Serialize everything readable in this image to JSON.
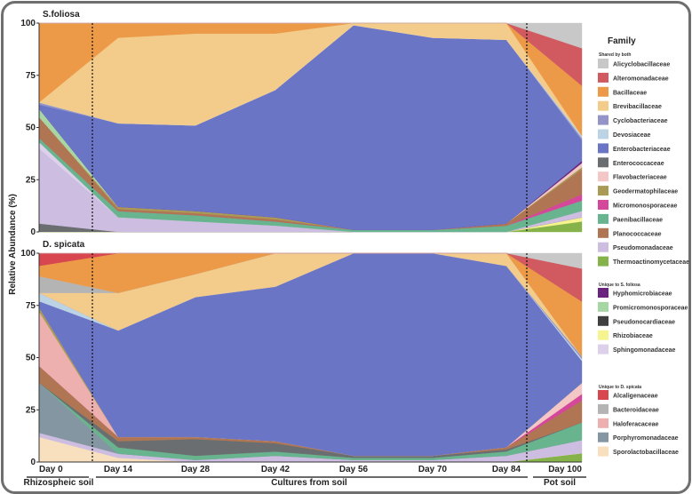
{
  "chart_data": {
    "type": "area",
    "ylabel": "Relative Abundance (%)",
    "yticks": [
      0,
      25,
      50,
      75,
      100
    ],
    "x": [
      "Day 0",
      "Day 14",
      "Day 28",
      "Day 42",
      "Day 56",
      "Day 70",
      "Day 84",
      "Day 100"
    ],
    "groups": [
      {
        "label": "Rhizospheic soil",
        "from": "Day 0",
        "to": "Day 0"
      },
      {
        "label": "Cultures from soil",
        "from": "Day 14",
        "to": "Day 84"
      },
      {
        "label": "Pot soil",
        "from": "Day 100",
        "to": "Day 100"
      }
    ],
    "panels": [
      {
        "title": "S.foliosa",
        "series": [
          {
            "name": "Thermoactinomycetaceae",
            "values": [
              0,
              0,
              0,
              0,
              0,
              0,
              0,
              5
            ]
          },
          {
            "name": "Rhizobiaceae",
            "values": [
              0,
              0,
              0,
              0,
              0,
              0,
              0,
              2
            ]
          },
          {
            "name": "Enterococcaceae",
            "values": [
              4,
              0,
              0,
              0,
              0,
              0,
              0,
              0
            ]
          },
          {
            "name": "Pseudomonadaceae",
            "values": [
              36,
              7,
              5,
              3,
              0,
              0,
              0,
              3
            ]
          },
          {
            "name": "Sphingomonadaceae",
            "values": [
              3,
              0,
              0,
              0,
              0,
              0,
              0,
              0
            ]
          },
          {
            "name": "Paenibacillaceae",
            "values": [
              2,
              3,
              3,
              2,
              1,
              1,
              3,
              5
            ]
          },
          {
            "name": "Micromonosporaceae",
            "values": [
              0,
              0,
              0,
              0,
              0,
              0,
              0,
              3
            ]
          },
          {
            "name": "Planococcaceae",
            "values": [
              10,
              1,
              1,
              1,
              0,
              0,
              1,
              12
            ]
          },
          {
            "name": "Geodermatophilaceae",
            "values": [
              0,
              1,
              1,
              1,
              0,
              0,
              0,
              1
            ]
          },
          {
            "name": "Flavobacteriaceae",
            "values": [
              0,
              0,
              0,
              0,
              0,
              0,
              0,
              2
            ]
          },
          {
            "name": "Promicromonosporaceae",
            "values": [
              4,
              0,
              0,
              0,
              0,
              0,
              0,
              0
            ]
          },
          {
            "name": "Hyphomicrobiaceae",
            "values": [
              0,
              0,
              0,
              0,
              0,
              0,
              0,
              1
            ]
          },
          {
            "name": "Enterobacteriaceae",
            "values": [
              2,
              40,
              41,
              61,
              98,
              92,
              88,
              10
            ]
          },
          {
            "name": "Cyclobacteriaceae",
            "values": [
              1,
              0,
              0,
              0,
              0,
              0,
              0,
              1
            ]
          },
          {
            "name": "Devosiaceae",
            "values": [
              0,
              0,
              0,
              0,
              0,
              0,
              0,
              1
            ]
          },
          {
            "name": "Brevibacillaceae",
            "values": [
              0,
              41,
              44,
              27,
              1,
              7,
              8,
              0
            ]
          },
          {
            "name": "Bacillaceae",
            "values": [
              38,
              7,
              5,
              5,
              0,
              0,
              0,
              24
            ]
          },
          {
            "name": "Alteromonadaceae",
            "values": [
              0,
              0,
              0,
              0,
              0,
              0,
              0,
              18
            ]
          },
          {
            "name": "Alicyclobacillaceae",
            "values": [
              0,
              0,
              0,
              0,
              0,
              0,
              0,
              12
            ]
          }
        ]
      },
      {
        "title": "D. spicata",
        "series": [
          {
            "name": "Thermoactinomycetaceae",
            "values": [
              0,
              0,
              0,
              0,
              0,
              0,
              0,
              4
            ]
          },
          {
            "name": "Sporolactobacillaceae",
            "values": [
              12,
              2,
              0,
              0,
              0,
              0,
              0,
              0
            ]
          },
          {
            "name": "Pseudomonadaceae",
            "values": [
              2,
              2,
              1,
              3,
              1,
              1,
              3,
              6
            ]
          },
          {
            "name": "Porphyromonadaceae",
            "values": [
              24,
              0,
              0,
              0,
              0,
              0,
              0,
              0
            ]
          },
          {
            "name": "Paenibacillaceae",
            "values": [
              0,
              3,
              2,
              2,
              1,
              1,
              2,
              8
            ]
          },
          {
            "name": "Enterococcaceae",
            "values": [
              0,
              3,
              8,
              4,
              1,
              1,
              1,
              0
            ]
          },
          {
            "name": "Planococcaceae",
            "values": [
              8,
              2,
              1,
              1,
              0,
              0,
              1,
              10
            ]
          },
          {
            "name": "Micromonosporaceae",
            "values": [
              0,
              0,
              0,
              0,
              0,
              0,
              0,
              3
            ]
          },
          {
            "name": "Haloferacaceae",
            "values": [
              26,
              0,
              0,
              0,
              0,
              0,
              0,
              0
            ]
          },
          {
            "name": "Flavobacteriaceae",
            "values": [
              0,
              0,
              0,
              0,
              0,
              0,
              0,
              5
            ]
          },
          {
            "name": "Geodermatophilaceae",
            "values": [
              2,
              0,
              0,
              0,
              0,
              0,
              0,
              0
            ]
          },
          {
            "name": "Enterobacteriaceae",
            "values": [
              3,
              51,
              67,
              74,
              97,
              97,
              86,
              10
            ]
          },
          {
            "name": "Devosiaceae",
            "values": [
              4,
              0,
              0,
              0,
              0,
              0,
              0,
              1
            ]
          },
          {
            "name": "Cyclobacteriaceae",
            "values": [
              0,
              0,
              0,
              0,
              0,
              0,
              0,
              1
            ]
          },
          {
            "name": "Brevibacillaceae",
            "values": [
              0,
              18,
              11,
              16,
              0,
              0,
              6,
              0
            ]
          },
          {
            "name": "Bacteroidaceae",
            "values": [
              8,
              0,
              0,
              0,
              0,
              0,
              0,
              0
            ]
          },
          {
            "name": "Bacillaceae",
            "values": [
              5,
              19,
              10,
              0,
              0,
              0,
              0,
              25
            ]
          },
          {
            "name": "Alteromonadaceae",
            "values": [
              0,
              0,
              0,
              0,
              0,
              0,
              0,
              15
            ]
          },
          {
            "name": "Alcaligenaceae",
            "values": [
              6,
              0,
              0,
              0,
              0,
              0,
              0,
              0
            ]
          },
          {
            "name": "Alicyclobacillaceae",
            "values": [
              0,
              0,
              0,
              0,
              0,
              0,
              0,
              7
            ]
          }
        ]
      }
    ],
    "legend": {
      "title": "Family",
      "placement": "right",
      "sections": [
        {
          "header": "Shared by both",
          "items": [
            {
              "name": "Alicyclobacillaceae",
              "color": "#c8c8c8"
            },
            {
              "name": "Alteromonadaceae",
              "color": "#d05a5f"
            },
            {
              "name": "Bacillaceae",
              "color": "#ec9a48"
            },
            {
              "name": "Brevibacillaceae",
              "color": "#f3cc8c"
            },
            {
              "name": "Cyclobacteriaceae",
              "color": "#9494c9"
            },
            {
              "name": "Devosiaceae",
              "color": "#bcd3e6"
            },
            {
              "name": "Enterobacteriaceae",
              "color": "#6b75c6"
            },
            {
              "name": "Enterococcaceae",
              "color": "#6b6e70"
            },
            {
              "name": "Flavobacteriaceae",
              "color": "#f3c7c5"
            },
            {
              "name": "Geodermatophilaceae",
              "color": "#a99a55"
            },
            {
              "name": "Micromonosporaceae",
              "color": "#d4479a"
            },
            {
              "name": "Paenibacillaceae",
              "color": "#68b48e"
            },
            {
              "name": "Planococcaceae",
              "color": "#b07552"
            },
            {
              "name": "Pseudomonadaceae",
              "color": "#cdbde0"
            },
            {
              "name": "Thermoactinomycetaceae",
              "color": "#86b24a"
            }
          ]
        },
        {
          "header": "Unique to S. foliosa",
          "items": [
            {
              "name": "Hyphomicrobiaceae",
              "color": "#6b2380"
            },
            {
              "name": "Promicromonosporaceae",
              "color": "#a6d6a4"
            },
            {
              "name": "Pseudonocardiaceae",
              "color": "#3f3f3f"
            },
            {
              "name": "Rhizobiaceae",
              "color": "#f6f48e"
            },
            {
              "name": "Sphingomonadaceae",
              "color": "#ddd0ea"
            }
          ]
        },
        {
          "header": "Unique to D. spicata",
          "items": [
            {
              "name": "Alcaligenaceae",
              "color": "#d8464f"
            },
            {
              "name": "Bacteroidaceae",
              "color": "#b4b4b4"
            },
            {
              "name": "Haloferacaceae",
              "color": "#edb0ae"
            },
            {
              "name": "Porphyromonadaceae",
              "color": "#8596a3"
            },
            {
              "name": "Sporolactobacillaceae",
              "color": "#f8dfbd"
            }
          ]
        }
      ]
    }
  }
}
